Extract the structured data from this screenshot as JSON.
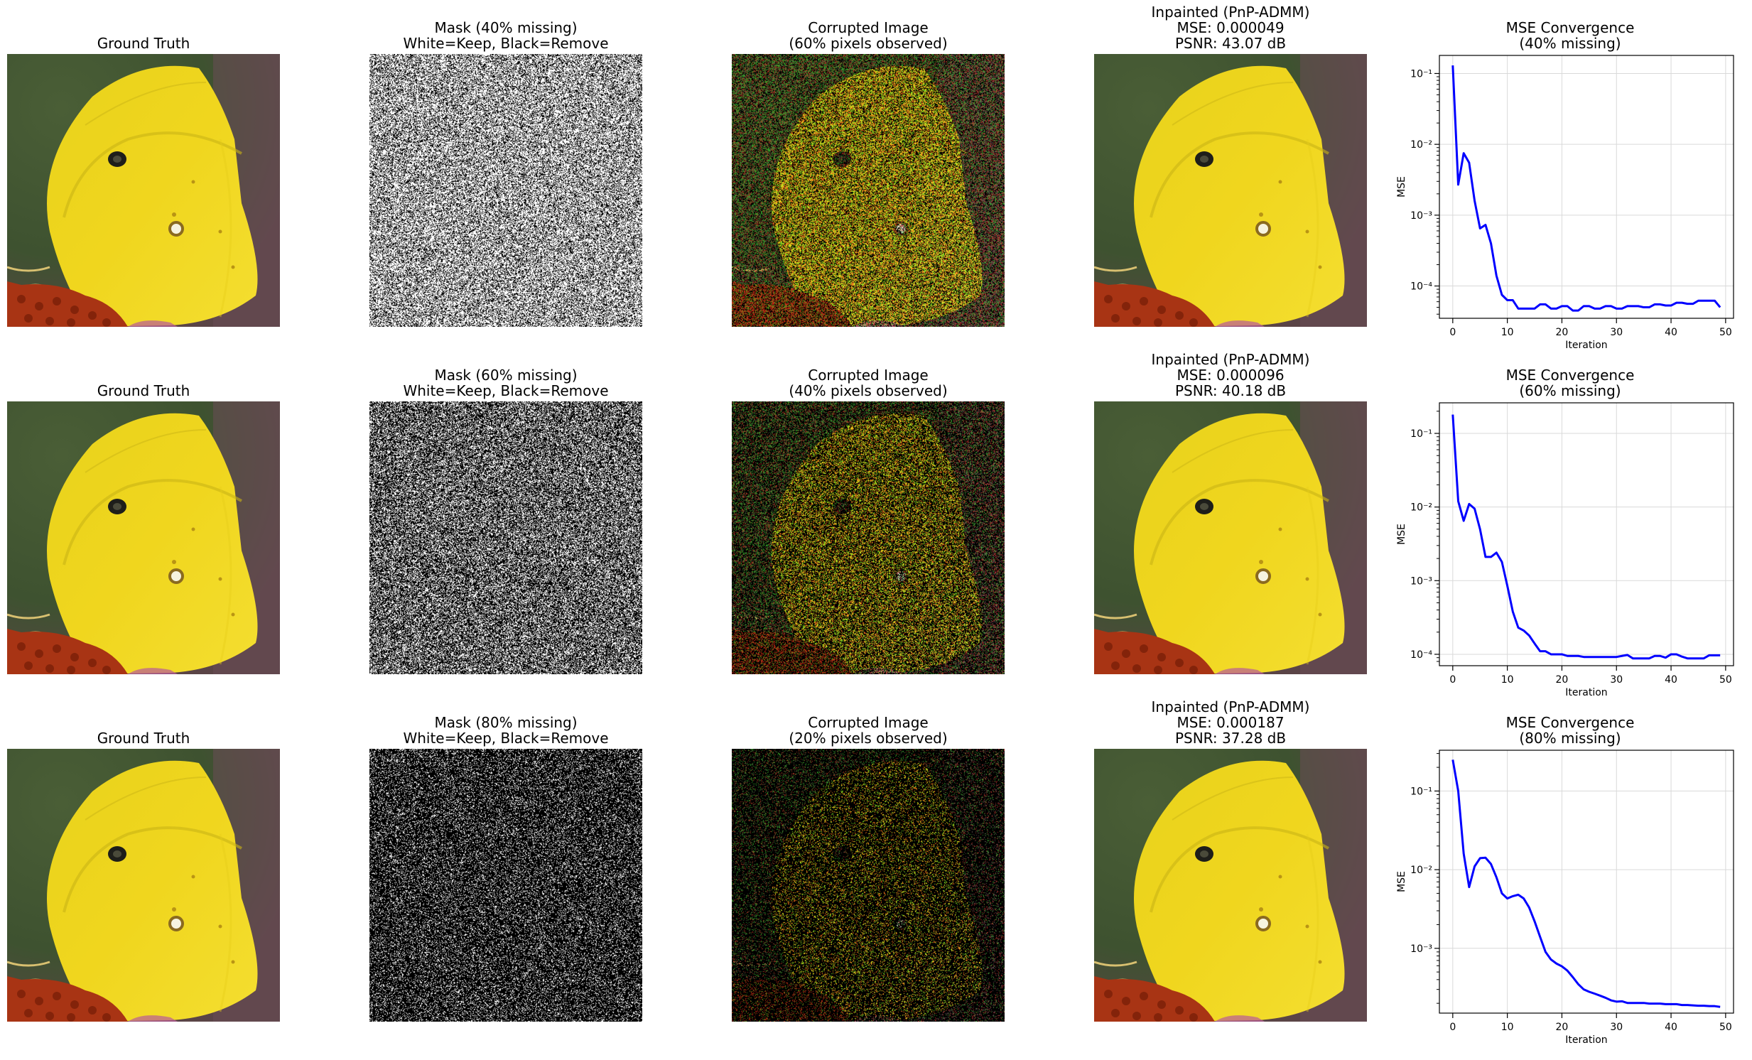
{
  "colors": {
    "wing": "#f0d61e",
    "wing_shadow": "#c9b416",
    "background_green": "#3e5230",
    "flower": "#a83414",
    "line": "#0000ff"
  },
  "rows": [
    {
      "ground_truth": {
        "title": "Ground Truth"
      },
      "mask": {
        "title_line1": "Mask (40% missing)",
        "title_line2": "White=Keep, Black=Remove",
        "missing_fraction": 0.4
      },
      "corrupted": {
        "title_line1": "Corrupted Image",
        "title_line2": "(60% pixels observed)",
        "observed_fraction": 0.6
      },
      "inpainted": {
        "title_line1": "Inpainted (PnP-ADMM)",
        "title_line2": "MSE: 0.000049",
        "title_line3": "PSNR: 43.07 dB"
      }
    },
    {
      "ground_truth": {
        "title": "Ground Truth"
      },
      "mask": {
        "title_line1": "Mask (60% missing)",
        "title_line2": "White=Keep, Black=Remove",
        "missing_fraction": 0.6
      },
      "corrupted": {
        "title_line1": "Corrupted Image",
        "title_line2": "(40% pixels observed)",
        "observed_fraction": 0.4
      },
      "inpainted": {
        "title_line1": "Inpainted (PnP-ADMM)",
        "title_line2": "MSE: 0.000096",
        "title_line3": "PSNR: 40.18 dB"
      }
    },
    {
      "ground_truth": {
        "title": "Ground Truth"
      },
      "mask": {
        "title_line1": "Mask (80% missing)",
        "title_line2": "White=Keep, Black=Remove",
        "missing_fraction": 0.8
      },
      "corrupted": {
        "title_line1": "Corrupted Image",
        "title_line2": "(20% pixels observed)",
        "observed_fraction": 0.2
      },
      "inpainted": {
        "title_line1": "Inpainted (PnP-ADMM)",
        "title_line2": "MSE: 0.000187",
        "title_line3": "PSNR: 37.28 dB"
      }
    }
  ],
  "chart_data": [
    {
      "type": "line",
      "title": "MSE Convergence",
      "subtitle": "(40% missing)",
      "xlabel": "Iteration",
      "ylabel": "MSE",
      "yscale": "log",
      "xlim": [
        -2.45,
        51.45
      ],
      "ylim": [
        3.5e-05,
        0.18
      ],
      "xticks": [
        0,
        10,
        20,
        30,
        40,
        50
      ],
      "yticks": [
        0.0001,
        0.001,
        0.01,
        0.1
      ],
      "ytick_labels": [
        "10⁻⁴",
        "10⁻³",
        "10⁻²",
        "10⁻¹"
      ],
      "grid": true,
      "color": "#0000ff",
      "x": [
        0,
        1,
        2,
        3,
        4,
        5,
        6,
        7,
        8,
        9,
        10,
        11,
        12,
        13,
        14,
        15,
        16,
        17,
        18,
        19,
        20,
        21,
        22,
        23,
        24,
        25,
        26,
        27,
        28,
        29,
        30,
        31,
        32,
        33,
        34,
        35,
        36,
        37,
        38,
        39,
        40,
        41,
        42,
        43,
        44,
        45,
        46,
        47,
        48,
        49
      ],
      "y": [
        0.13,
        0.0027,
        0.0075,
        0.0055,
        0.0016,
        0.00065,
        0.00073,
        0.0004,
        0.00014,
        7.5e-05,
        6.3e-05,
        6.3e-05,
        4.8e-05,
        4.8e-05,
        4.8e-05,
        4.8e-05,
        5.5e-05,
        5.5e-05,
        4.8e-05,
        4.8e-05,
        5.2e-05,
        5.2e-05,
        4.5e-05,
        4.5e-05,
        5.2e-05,
        5.2e-05,
        4.8e-05,
        4.8e-05,
        5.2e-05,
        5.2e-05,
        4.8e-05,
        4.8e-05,
        5.2e-05,
        5.2e-05,
        5.2e-05,
        5e-05,
        5e-05,
        5.5e-05,
        5.5e-05,
        5.3e-05,
        5.3e-05,
        5.8e-05,
        5.8e-05,
        5.6e-05,
        5.6e-05,
        6.2e-05,
        6.2e-05,
        6.2e-05,
        6.2e-05,
        5e-05
      ]
    },
    {
      "type": "line",
      "title": "MSE Convergence",
      "subtitle": "(60% missing)",
      "xlabel": "Iteration",
      "ylabel": "MSE",
      "yscale": "log",
      "xlim": [
        -2.45,
        51.45
      ],
      "ylim": [
        7e-05,
        0.26
      ],
      "xticks": [
        0,
        10,
        20,
        30,
        40,
        50
      ],
      "yticks": [
        0.0001,
        0.001,
        0.01,
        0.1
      ],
      "ytick_labels": [
        "10⁻⁴",
        "10⁻³",
        "10⁻²",
        "10⁻¹"
      ],
      "grid": true,
      "color": "#0000ff",
      "x": [
        0,
        1,
        2,
        3,
        4,
        5,
        6,
        7,
        8,
        9,
        10,
        11,
        12,
        13,
        14,
        15,
        16,
        17,
        18,
        19,
        20,
        21,
        22,
        23,
        24,
        25,
        26,
        27,
        28,
        29,
        30,
        31,
        32,
        33,
        34,
        35,
        36,
        37,
        38,
        39,
        40,
        41,
        42,
        43,
        44,
        45,
        46,
        47,
        48,
        49
      ],
      "y": [
        0.18,
        0.012,
        0.0065,
        0.011,
        0.0095,
        0.005,
        0.0021,
        0.0021,
        0.0024,
        0.0018,
        0.00085,
        0.00038,
        0.00023,
        0.00021,
        0.00018,
        0.00014,
        0.00011,
        0.00011,
        0.0001,
        0.0001,
        0.0001,
        9.5e-05,
        9.5e-05,
        9.5e-05,
        9.2e-05,
        9.2e-05,
        9.2e-05,
        9.2e-05,
        9.2e-05,
        9.2e-05,
        9.2e-05,
        9.5e-05,
        9.8e-05,
        8.8e-05,
        8.8e-05,
        8.8e-05,
        8.8e-05,
        9.5e-05,
        9.5e-05,
        9e-05,
        0.0001,
        0.0001,
        9.3e-05,
        8.8e-05,
        8.8e-05,
        8.8e-05,
        8.8e-05,
        9.7e-05,
        9.7e-05,
        9.7e-05
      ]
    },
    {
      "type": "line",
      "title": "MSE Convergence",
      "subtitle": "(80% missing)",
      "xlabel": "Iteration",
      "ylabel": "MSE",
      "yscale": "log",
      "xlim": [
        -2.45,
        51.45
      ],
      "ylim": [
        0.00015,
        0.33
      ],
      "xticks": [
        0,
        10,
        20,
        30,
        40,
        50
      ],
      "yticks": [
        0.001,
        0.01,
        0.1
      ],
      "ytick_labels": [
        "10⁻³",
        "10⁻²",
        "10⁻¹"
      ],
      "grid": true,
      "color": "#0000ff",
      "x": [
        0,
        1,
        2,
        3,
        4,
        5,
        6,
        7,
        8,
        9,
        10,
        11,
        12,
        13,
        14,
        15,
        16,
        17,
        18,
        19,
        20,
        21,
        22,
        23,
        24,
        25,
        26,
        27,
        28,
        29,
        30,
        31,
        32,
        33,
        34,
        35,
        36,
        37,
        38,
        39,
        40,
        41,
        42,
        43,
        44,
        45,
        46,
        47,
        48,
        49
      ],
      "y": [
        0.25,
        0.1,
        0.016,
        0.006,
        0.011,
        0.014,
        0.0142,
        0.0118,
        0.008,
        0.005,
        0.0043,
        0.0046,
        0.0048,
        0.0043,
        0.0033,
        0.0022,
        0.0014,
        0.0009,
        0.00072,
        0.00064,
        0.00059,
        0.00052,
        0.00043,
        0.00035,
        0.0003,
        0.00028,
        0.000265,
        0.00025,
        0.000235,
        0.000218,
        0.00021,
        0.000212,
        0.000202,
        0.000202,
        0.000202,
        0.000202,
        0.000198,
        0.000198,
        0.000198,
        0.000195,
        0.000195,
        0.000195,
        0.00019,
        0.00019,
        0.000188,
        0.000186,
        0.000186,
        0.000184,
        0.000184,
        0.00018
      ]
    }
  ]
}
